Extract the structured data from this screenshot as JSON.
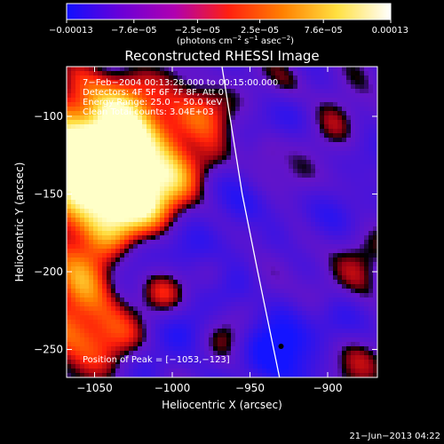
{
  "chart_data": {
    "type": "heatmap",
    "title": "Reconstructed RHESSI Image",
    "xlabel": "Heliocentric X (arcsec)",
    "ylabel": "Heliocentric Y (arcsec)",
    "xlim": [
      -1068,
      -868
    ],
    "ylim": [
      -268,
      -68
    ],
    "x_ticks": [
      -1050,
      -1000,
      -950,
      -900
    ],
    "x_tick_labels": [
      "−1050",
      "−1000",
      "−950",
      "−900"
    ],
    "y_ticks": [
      -100,
      -150,
      -200,
      -250
    ],
    "y_tick_labels": [
      "−100",
      "−150",
      "−200",
      "−250"
    ],
    "colorbar": {
      "range": [
        -0.00013,
        0.00013
      ],
      "ticks": [
        -0.00013,
        -7.6e-05,
        -2.5e-05,
        2.5e-05,
        7.6e-05,
        0.00013
      ],
      "tick_labels": [
        "−0.00013",
        "−7.6e−05",
        "−2.5e−05",
        "2.5e−05",
        "7.6e−05",
        "0.00013"
      ],
      "unit_parts": [
        "(photons cm",
        "−2",
        " s",
        "−1",
        " asec",
        "−2",
        ")"
      ],
      "colors": [
        "#1010ff",
        "#6a00d8",
        "#b000b0",
        "#ff2010",
        "#ff8000",
        "#ffe040",
        "#ffffff"
      ]
    },
    "annotations": [
      "7−Feb−2004 00:13:28.000 to 00:15:00.000",
      "Detectors: 4F 5F 6F 7F 8F, Att 0",
      "Energy Range: 25.0 − 50.0 keV",
      "Clean    Total counts: 3.04E+03"
    ],
    "peak_label": "Position of Peak = [−1053,−123]",
    "peak": [
      -1053,
      -123
    ],
    "limb_curve": [
      [
        -968,
        -68
      ],
      [
        -955,
        -150
      ],
      [
        -945,
        -200
      ],
      [
        -931,
        -268
      ]
    ],
    "marker": [
      -930,
      -248
    ],
    "hot_regions": [
      [
        -1060,
        -110,
        22,
        1.0
      ],
      [
        -1050,
        -150,
        25,
        1.0
      ],
      [
        -1035,
        -125,
        18,
        0.8
      ],
      [
        -1055,
        -200,
        20,
        0.6
      ],
      [
        -1020,
        -160,
        18,
        0.7
      ],
      [
        -1005,
        -110,
        16,
        0.6
      ],
      [
        -980,
        -95,
        14,
        0.5
      ],
      [
        -1000,
        -145,
        14,
        0.5
      ],
      [
        -975,
        -130,
        10,
        0.4
      ],
      [
        -1045,
        -245,
        18,
        0.5
      ],
      [
        -1005,
        -215,
        12,
        0.4
      ],
      [
        -975,
        -200,
        10,
        0.35
      ],
      [
        -915,
        -140,
        12,
        0.4
      ],
      [
        -890,
        -105,
        14,
        0.45
      ],
      [
        -880,
        -185,
        14,
        0.45
      ],
      [
        -905,
        -215,
        12,
        0.4
      ],
      [
        -885,
        -255,
        14,
        0.5
      ],
      [
        -945,
        -170,
        8,
        0.25
      ],
      [
        -960,
        -240,
        12,
        0.4
      ],
      [
        -925,
        -80,
        10,
        0.3
      ],
      [
        -1030,
        -85,
        14,
        0.6
      ],
      [
        -940,
        -120,
        8,
        0.25
      ],
      [
        -1068,
        -240,
        16,
        0.5
      ]
    ],
    "cold_regions": [
      [
        -930,
        -250,
        18,
        -0.9
      ],
      [
        -900,
        -165,
        14,
        -0.5
      ],
      [
        -955,
        -155,
        14,
        -0.45
      ],
      [
        -985,
        -185,
        14,
        -0.55
      ],
      [
        -1025,
        -190,
        12,
        -0.55
      ],
      [
        -895,
        -230,
        12,
        -0.5
      ],
      [
        -920,
        -100,
        12,
        -0.4
      ],
      [
        -960,
        -210,
        10,
        -0.35
      ],
      [
        -990,
        -235,
        12,
        -0.45
      ],
      [
        -1015,
        -260,
        10,
        -0.35
      ],
      [
        -875,
        -125,
        12,
        -0.4
      ]
    ]
  },
  "footer": {
    "timestamp": "21−Jun−2013 04:22"
  }
}
